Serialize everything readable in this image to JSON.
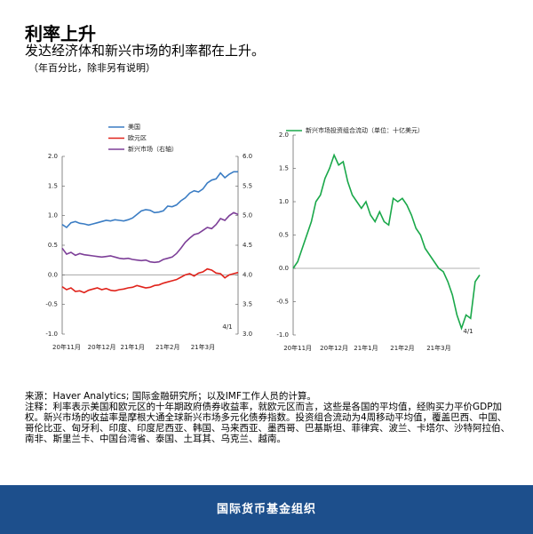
{
  "header": {
    "title": "利率上升",
    "subtitle": "发达经济体和新兴市场的利率都在上升。",
    "unit": "（年百分比，除非另有说明）"
  },
  "chart_data": [
    {
      "type": "line",
      "annotations": [
        "4/1"
      ],
      "categories": [
        null,
        "20年11月",
        null,
        null,
        null,
        null,
        null,
        null,
        null,
        "20年12月",
        null,
        null,
        null,
        null,
        null,
        null,
        "21年1月",
        null,
        null,
        null,
        null,
        null,
        null,
        null,
        "21年2月",
        null,
        null,
        null,
        null,
        null,
        null,
        null,
        "21年3月",
        null,
        null,
        null,
        null,
        null,
        null,
        null,
        null
      ],
      "series": [
        {
          "name": "美国",
          "color": "#3b7dc4",
          "values": [
            0.85,
            0.8,
            0.88,
            0.9,
            0.87,
            0.86,
            0.84,
            0.86,
            0.88,
            0.9,
            0.92,
            0.91,
            0.93,
            0.92,
            0.91,
            0.93,
            0.96,
            1.02,
            1.08,
            1.1,
            1.09,
            1.05,
            1.06,
            1.08,
            1.16,
            1.15,
            1.18,
            1.25,
            1.3,
            1.38,
            1.42,
            1.4,
            1.45,
            1.55,
            1.6,
            1.62,
            1.72,
            1.64,
            1.7,
            1.74,
            1.74
          ]
        },
        {
          "name": "欧元区",
          "color": "#e0231b",
          "values": [
            -0.2,
            -0.25,
            -0.22,
            -0.28,
            -0.27,
            -0.3,
            -0.26,
            -0.24,
            -0.22,
            -0.25,
            -0.23,
            -0.26,
            -0.27,
            -0.25,
            -0.24,
            -0.22,
            -0.21,
            -0.18,
            -0.2,
            -0.22,
            -0.21,
            -0.18,
            -0.17,
            -0.14,
            -0.12,
            -0.1,
            -0.08,
            -0.04,
            0.0,
            0.02,
            -0.02,
            0.03,
            0.05,
            0.1,
            0.08,
            0.03,
            0.02,
            -0.05,
            0.0,
            0.02,
            0.04
          ]
        },
        {
          "name": "新兴市场（右轴）",
          "color": "#7d3f98",
          "axis": "y2",
          "values": [
            4.45,
            4.35,
            4.38,
            4.33,
            4.36,
            4.34,
            4.33,
            4.32,
            4.31,
            4.3,
            4.31,
            4.32,
            4.3,
            4.28,
            4.27,
            4.28,
            4.26,
            4.25,
            4.24,
            4.25,
            4.22,
            4.21,
            4.22,
            4.26,
            4.28,
            4.3,
            4.36,
            4.45,
            4.55,
            4.62,
            4.68,
            4.7,
            4.75,
            4.8,
            4.78,
            4.85,
            4.95,
            4.92,
            5.0,
            5.05,
            5.02
          ]
        }
      ],
      "ylim": [
        -1,
        2
      ],
      "yticks": [
        {
          "value": -1,
          "label": "-1.0"
        },
        {
          "value": -0.5,
          "label": "-0.5"
        },
        {
          "value": 0,
          "label": "0.0"
        },
        {
          "value": 0.5,
          "label": "0.5"
        },
        {
          "value": 1,
          "label": "1.0"
        },
        {
          "value": 1.5,
          "label": "1.5"
        },
        {
          "value": 2,
          "label": "2.0"
        }
      ],
      "y2lim": [
        3,
        6
      ],
      "y2ticks": [
        {
          "value": 3,
          "label": "3.0"
        },
        {
          "value": 3.5,
          "label": "3.5"
        },
        {
          "value": 4,
          "label": "4.0"
        },
        {
          "value": 4.5,
          "label": "4.5"
        },
        {
          "value": 5,
          "label": "5.0"
        },
        {
          "value": 5.5,
          "label": "5.5"
        },
        {
          "value": 6,
          "label": "6.0"
        }
      ]
    },
    {
      "type": "line",
      "annotations": [
        "4/1"
      ],
      "categories": [
        null,
        "20年11月",
        null,
        null,
        null,
        null,
        null,
        null,
        null,
        "20年12月",
        null,
        null,
        null,
        null,
        null,
        null,
        "21年1月",
        null,
        null,
        null,
        null,
        null,
        null,
        null,
        "21年2月",
        null,
        null,
        null,
        null,
        null,
        null,
        null,
        "21年3月",
        null,
        null,
        null,
        null,
        null,
        null,
        null,
        null,
        null
      ],
      "series": [
        {
          "name": "新兴市场投资组合流动（单位：十亿美元）",
          "color": "#1aa84a",
          "values": [
            0.0,
            0.1,
            0.3,
            0.5,
            0.7,
            1.0,
            1.1,
            1.35,
            1.5,
            1.7,
            1.55,
            1.6,
            1.3,
            1.1,
            1.0,
            0.9,
            1.0,
            0.8,
            0.7,
            0.85,
            0.7,
            0.65,
            1.05,
            1.0,
            1.05,
            0.95,
            0.8,
            0.6,
            0.5,
            0.3,
            0.2,
            0.1,
            0.0,
            -0.05,
            -0.2,
            -0.4,
            -0.7,
            -0.9,
            -0.7,
            -0.75,
            -0.2,
            -0.1
          ]
        }
      ],
      "ylim": [
        -1,
        2
      ],
      "yticks": [
        {
          "value": -1,
          "label": "-1.0"
        },
        {
          "value": -0.5,
          "label": "-0.5"
        },
        {
          "value": 0,
          "label": "0.0"
        },
        {
          "value": 0.5,
          "label": "0.5"
        },
        {
          "value": 1,
          "label": "1.0"
        },
        {
          "value": 1.5,
          "label": "1.5"
        },
        {
          "value": 2,
          "label": "2.0"
        }
      ]
    }
  ],
  "notes": [
    "来源：Haver Analytics; 国际金融研究所；以及IMF工作人员的计算。",
    "注释：利率表示美国和欧元区的十年期政府债券收益率，就欧元区而言，这些是各国的平均值，经购买力平价GDP加权。新兴市场的收益率是摩根大通全球新兴市场多元化债券指数。投资组合流动为4周移动平均值，覆盖巴西、中国、哥伦比亚、匈牙利、印度、印度尼西亚、韩国、马来西亚、墨西哥、巴基斯坦、菲律宾、波兰、卡塔尔、沙特阿拉伯、南非、斯里兰卡、中国台湾省、泰国、土耳其、乌克兰、越南。"
  ],
  "footer": "国际货币基金组织"
}
